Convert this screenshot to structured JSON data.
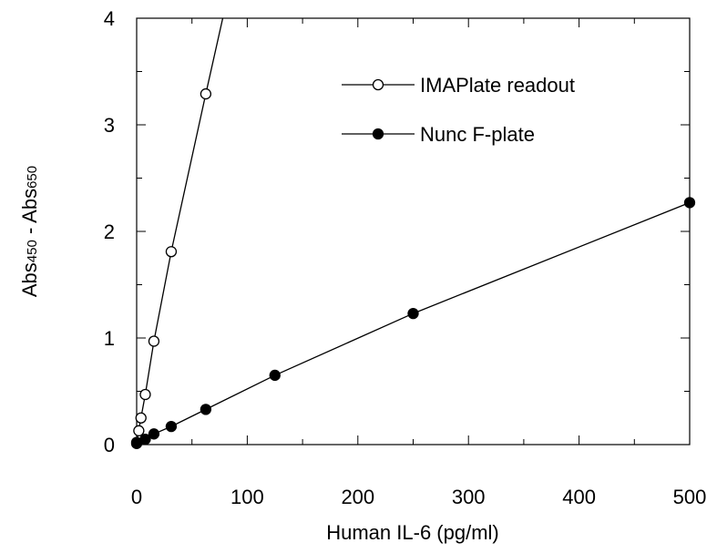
{
  "chart_data": {
    "type": "scatter",
    "title": "",
    "xlabel": "Human IL-6 (pg/ml)",
    "ylabel": {
      "base": "Abs",
      "sub1": "450",
      "sep": " - ",
      "sub2": "650",
      "tail": "Abs"
    },
    "xlim": [
      0,
      500
    ],
    "ylim": [
      0,
      4
    ],
    "xticks": [
      0,
      100,
      200,
      300,
      400,
      500
    ],
    "yticks": [
      0,
      1,
      2,
      3,
      4
    ],
    "grid": false,
    "legend_position": "top-right",
    "series": [
      {
        "name": "IMAPlate readout",
        "marker": "open-circle",
        "x": [
          0,
          1.95,
          3.9,
          7.8,
          15.6,
          31.25,
          62.5,
          80
        ],
        "y": [
          0.02,
          0.13,
          0.25,
          0.47,
          0.97,
          1.81,
          3.29,
          4.1
        ]
      },
      {
        "name": "Nunc F-plate",
        "marker": "filled-circle",
        "x": [
          0,
          7.8,
          15.6,
          31.25,
          62.5,
          125,
          250,
          500
        ],
        "y": [
          0.01,
          0.05,
          0.1,
          0.17,
          0.33,
          0.65,
          1.23,
          2.27
        ]
      }
    ]
  }
}
